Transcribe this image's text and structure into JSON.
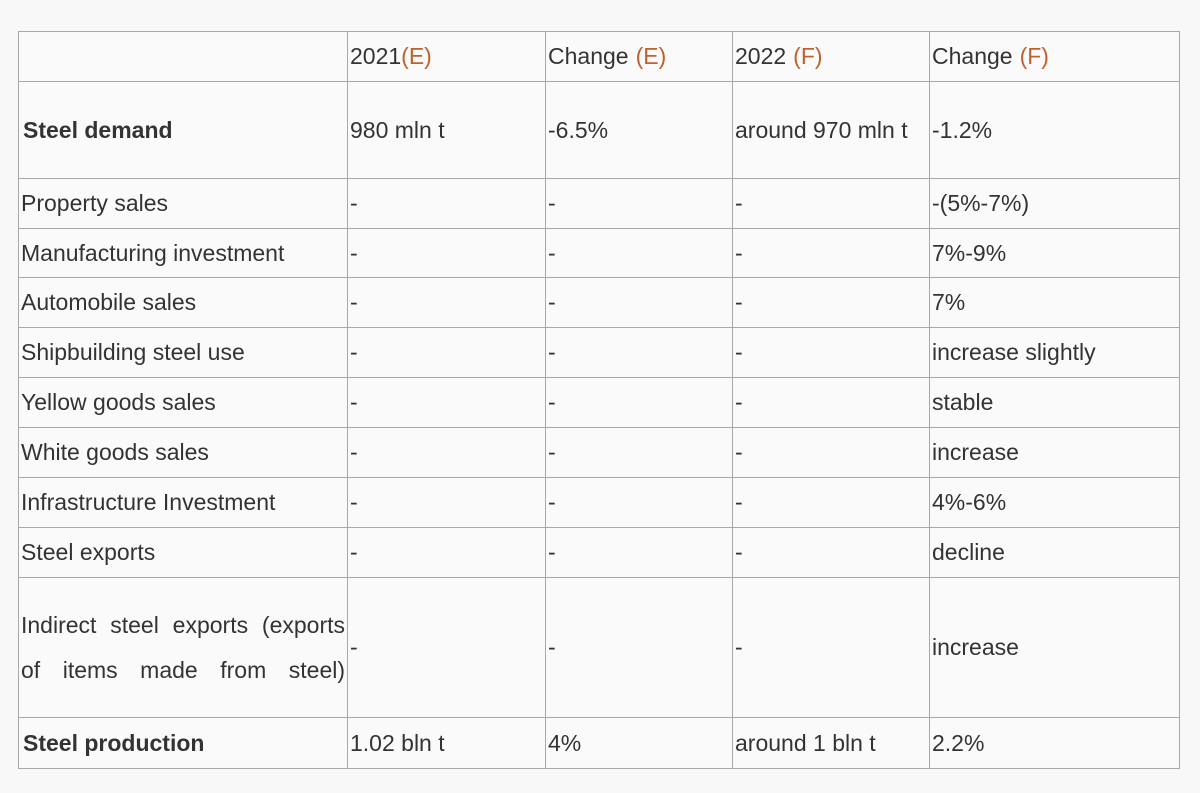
{
  "table": {
    "header": [
      {
        "main": "2021",
        "note": "(E)",
        "spaced": false
      },
      {
        "main": "Change",
        "note": "(E)",
        "spaced": true
      },
      {
        "main": "2022",
        "note": "(F)",
        "spaced": true
      },
      {
        "main": "Change",
        "note": "(F)",
        "spaced": true
      }
    ],
    "rows": [
      {
        "label": "Steel demand",
        "bold": true,
        "cells": [
          "980 mln t",
          "-6.5%",
          "around 970 mln t",
          "-1.2%"
        ]
      },
      {
        "label": "Property sales",
        "bold": false,
        "cells": [
          "-",
          "-",
          "-",
          "-(5%-7%)"
        ]
      },
      {
        "label": "Manufacturing investment",
        "bold": false,
        "cells": [
          "-",
          "-",
          "-",
          "7%-9%"
        ]
      },
      {
        "label": "Automobile sales",
        "bold": false,
        "cells": [
          "-",
          "-",
          "-",
          "7%"
        ]
      },
      {
        "label": "Shipbuilding steel use",
        "bold": false,
        "cells": [
          "-",
          "-",
          "-",
          "increase slightly"
        ]
      },
      {
        "label": "Yellow goods sales",
        "bold": false,
        "cells": [
          "-",
          "-",
          "-",
          "stable"
        ]
      },
      {
        "label": "White goods sales",
        "bold": false,
        "cells": [
          "-",
          "-",
          "-",
          "increase"
        ]
      },
      {
        "label": "Infrastructure Investment",
        "bold": false,
        "cells": [
          "-",
          "-",
          "-",
          "4%-6%"
        ]
      },
      {
        "label": "Steel exports",
        "bold": false,
        "cells": [
          "-",
          "-",
          "-",
          "decline"
        ]
      },
      {
        "label": "Indirect steel exports (exports of items made from steel)",
        "bold": false,
        "cells": [
          "-",
          "-",
          "-",
          "increase"
        ]
      },
      {
        "label": "Steel production",
        "bold": true,
        "cells": [
          "1.02 bln t",
          "4%",
          "around 1 bln t",
          "2.2%"
        ]
      }
    ]
  }
}
